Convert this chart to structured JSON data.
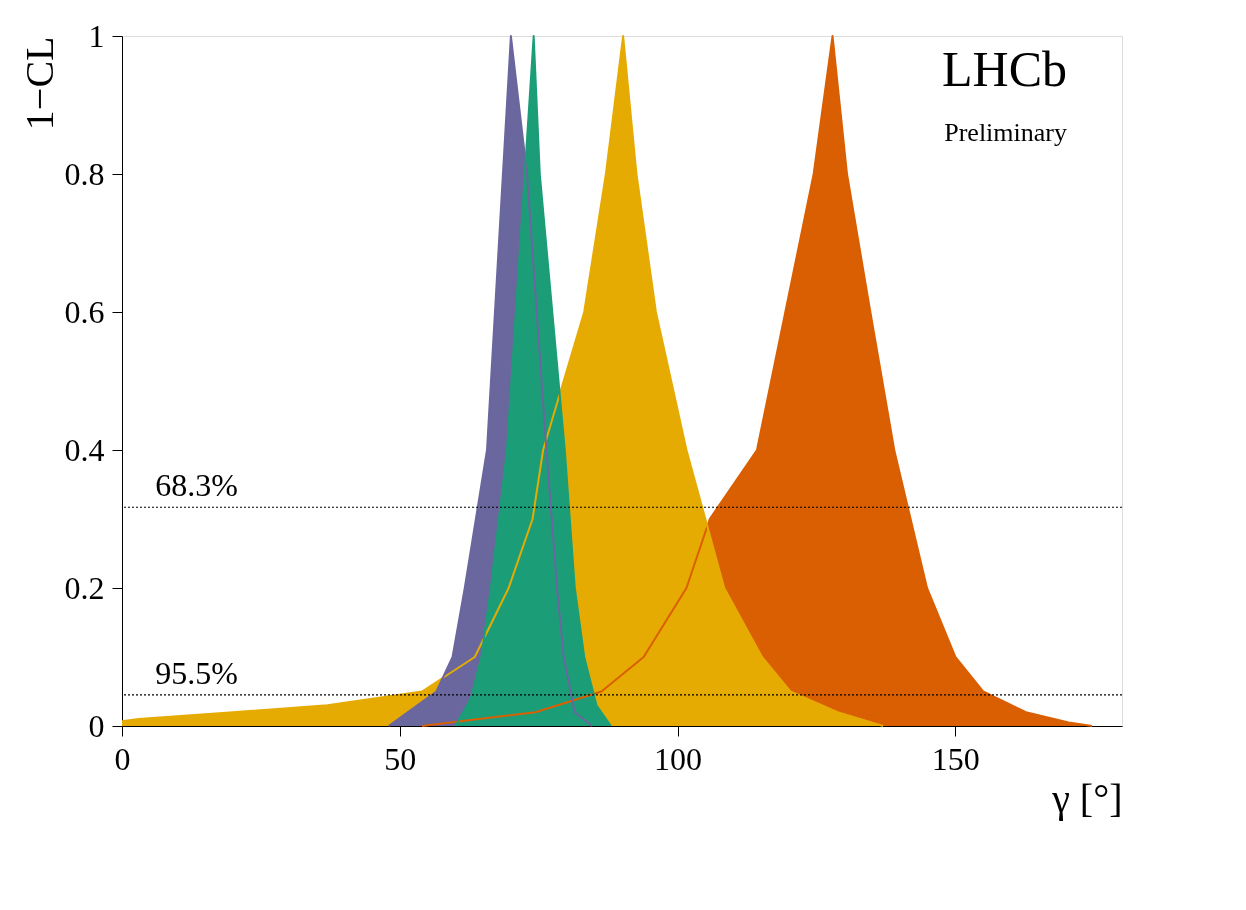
{
  "chart_data": {
    "type": "area",
    "xlabel": "γ [°]",
    "ylabel": "1−CL",
    "xlim": [
      0,
      180
    ],
    "ylim": [
      0,
      1
    ],
    "xticks": [
      0,
      50,
      100,
      150
    ],
    "yticks": [
      0,
      0.2,
      0.4,
      0.6,
      0.8,
      1
    ],
    "grid": false,
    "series": [
      {
        "color": "#d95f02",
        "x": [
          54,
          64.2,
          74.4,
          86.3,
          93.9,
          101.6,
          105.8,
          114.3,
          119.4,
          124.5,
          127.9,
          130.5,
          134.7,
          139,
          144.9,
          150,
          155,
          162.7,
          170.4,
          174.6
        ],
        "values": [
          0,
          0.01,
          0.02,
          0.05,
          0.1,
          0.2,
          0.3,
          0.4,
          0.6,
          0.8,
          1,
          0.8,
          0.6,
          0.4,
          0.2,
          0.1,
          0.05,
          0.02,
          0.005,
          0
        ]
      },
      {
        "color": "#e6ab02",
        "x": [
          0,
          3,
          20,
          37,
          54,
          63.5,
          69.6,
          73.9,
          75.8,
          83.2,
          87.1,
          90.2,
          92.6,
          96.1,
          101.6,
          108.4,
          115.2,
          120.3,
          128.8,
          137
        ],
        "values": [
          0.007,
          0.01,
          0.02,
          0.03,
          0.05,
          0.1,
          0.2,
          0.3,
          0.4,
          0.6,
          0.8,
          1,
          0.8,
          0.6,
          0.4,
          0.2,
          0.1,
          0.05,
          0.02,
          0
        ]
      },
      {
        "color": "#6a669e",
        "x": [
          48,
          56.6,
          59.5,
          61.7,
          65.7,
          70,
          72.9,
          76.4,
          78.3,
          79.5,
          81.5,
          84.6
        ],
        "values": [
          0,
          0.05,
          0.1,
          0.2,
          0.4,
          1,
          0.8,
          0.4,
          0.2,
          0.1,
          0.02,
          0
        ]
      },
      {
        "color": "#1b9e77",
        "x": [
          60,
          62.8,
          64.7,
          66.4,
          69.3,
          74.1,
          75.2,
          79.7,
          81.5,
          83.2,
          85.4,
          88
        ],
        "values": [
          0,
          0.04,
          0.1,
          0.2,
          0.4,
          1,
          0.8,
          0.4,
          0.2,
          0.1,
          0.03,
          0
        ]
      }
    ],
    "ref_lines": [
      {
        "axis": "y",
        "value": 0.317,
        "line_style": "dotted",
        "color": "#000000"
      },
      {
        "axis": "y",
        "value": 0.045,
        "line_style": "dotted",
        "color": "#000000"
      }
    ],
    "annotations": [
      "LHCb",
      "Preliminary",
      {
        "text": "68.3%",
        "x": 6,
        "y": 0.317
      },
      {
        "text": "95.5%",
        "x": 6,
        "y": 0.045
      }
    ]
  }
}
